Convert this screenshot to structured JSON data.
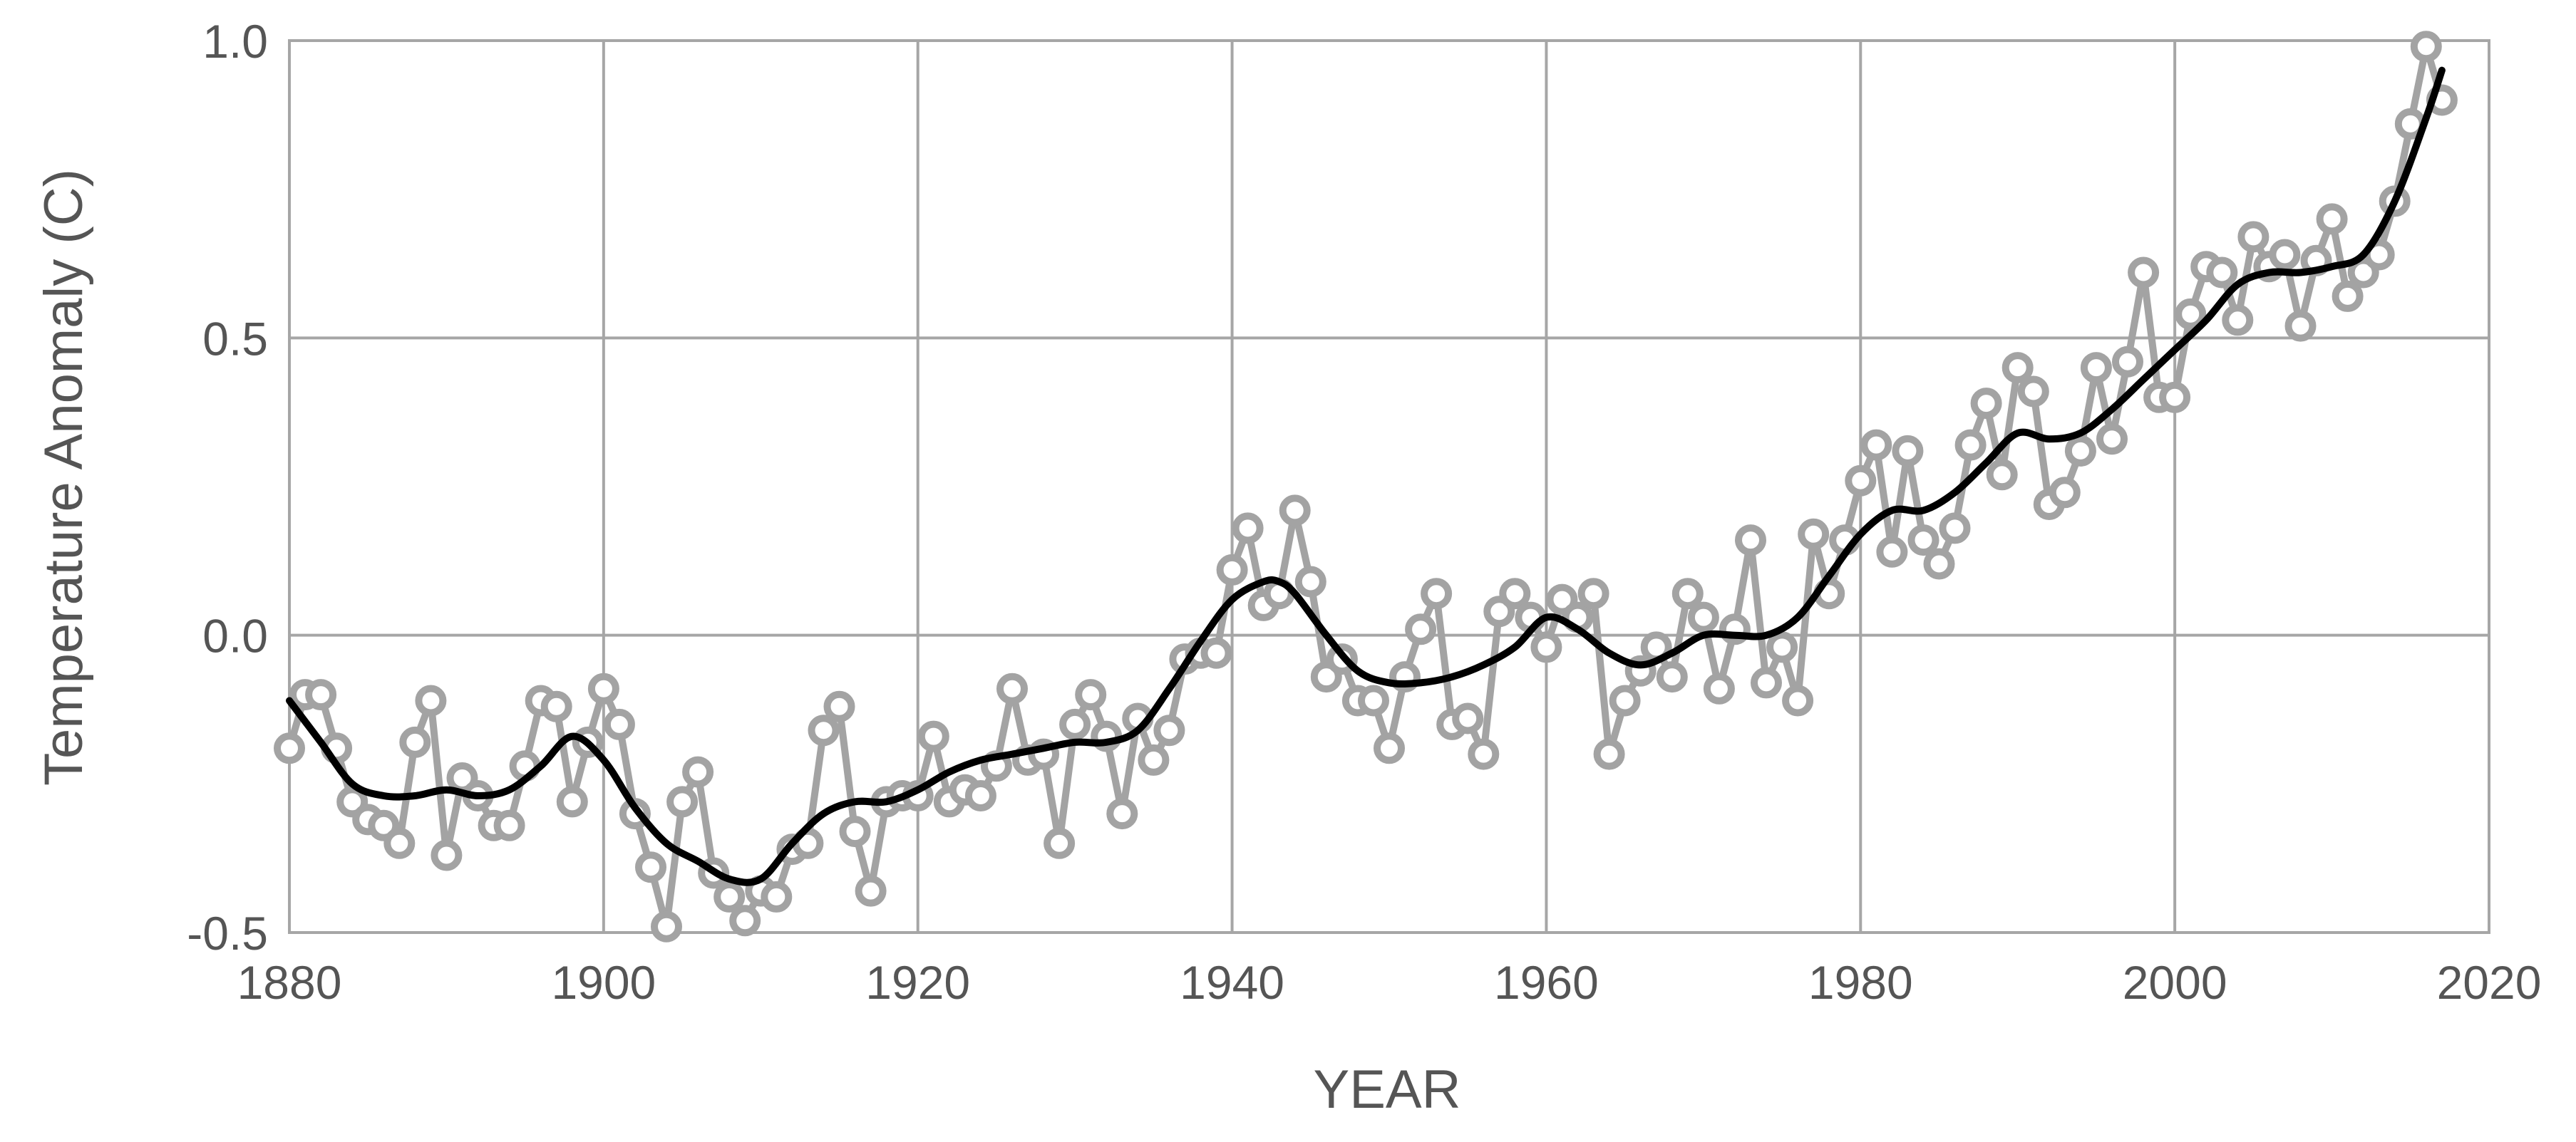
{
  "chart_data": {
    "type": "line",
    "title": "",
    "xlabel": "YEAR",
    "ylabel": "Temperature Anomaly (C)",
    "xlim": [
      1880,
      2020
    ],
    "ylim": [
      -0.5,
      1.0
    ],
    "x_ticks": [
      1880,
      1900,
      1920,
      1940,
      1960,
      1980,
      2000,
      2020
    ],
    "x_tick_labels": [
      "1880",
      "1900",
      "1920",
      "1940",
      "1960",
      "1980",
      "2000",
      "2020"
    ],
    "y_ticks": [
      -0.5,
      0.0,
      0.5,
      1.0
    ],
    "y_tick_labels": [
      "-0.5",
      "0.0",
      "0.5",
      "1.0"
    ],
    "grid": true,
    "legend": "none",
    "colors": {
      "annual": "#a3a3a3",
      "smoothed": "#000000",
      "grid": "#a6a6a6",
      "text": "#555555"
    },
    "series": [
      {
        "style": "line-with-open-circles",
        "x": [
          1880,
          1881,
          1882,
          1883,
          1884,
          1885,
          1886,
          1887,
          1888,
          1889,
          1890,
          1891,
          1892,
          1893,
          1894,
          1895,
          1896,
          1897,
          1898,
          1899,
          1900,
          1901,
          1902,
          1903,
          1904,
          1905,
          1906,
          1907,
          1908,
          1909,
          1910,
          1911,
          1912,
          1913,
          1914,
          1915,
          1916,
          1917,
          1918,
          1919,
          1920,
          1921,
          1922,
          1923,
          1924,
          1925,
          1926,
          1927,
          1928,
          1929,
          1930,
          1931,
          1932,
          1933,
          1934,
          1935,
          1936,
          1937,
          1938,
          1939,
          1940,
          1941,
          1942,
          1943,
          1944,
          1945,
          1946,
          1947,
          1948,
          1949,
          1950,
          1951,
          1952,
          1953,
          1954,
          1955,
          1956,
          1957,
          1958,
          1959,
          1960,
          1961,
          1962,
          1963,
          1964,
          1965,
          1966,
          1967,
          1968,
          1969,
          1970,
          1971,
          1972,
          1973,
          1974,
          1975,
          1976,
          1977,
          1978,
          1979,
          1980,
          1981,
          1982,
          1983,
          1984,
          1985,
          1986,
          1987,
          1988,
          1989,
          1990,
          1991,
          1992,
          1993,
          1994,
          1995,
          1996,
          1997,
          1998,
          1999,
          2000,
          2001,
          2002,
          2003,
          2004,
          2005,
          2006,
          2007,
          2008,
          2009,
          2010,
          2011,
          2012,
          2013,
          2014,
          2015,
          2016,
          2017
        ],
        "values": [
          -0.19,
          -0.1,
          -0.1,
          -0.19,
          -0.28,
          -0.31,
          -0.32,
          -0.35,
          -0.18,
          -0.11,
          -0.37,
          -0.24,
          -0.27,
          -0.32,
          -0.32,
          -0.22,
          -0.11,
          -0.12,
          -0.28,
          -0.18,
          -0.09,
          -0.15,
          -0.3,
          -0.39,
          -0.49,
          -0.28,
          -0.23,
          -0.4,
          -0.44,
          -0.48,
          -0.43,
          -0.44,
          -0.36,
          -0.35,
          -0.16,
          -0.12,
          -0.33,
          -0.43,
          -0.28,
          -0.27,
          -0.27,
          -0.17,
          -0.28,
          -0.26,
          -0.27,
          -0.22,
          -0.09,
          -0.21,
          -0.2,
          -0.35,
          -0.15,
          -0.1,
          -0.17,
          -0.3,
          -0.14,
          -0.21,
          -0.16,
          -0.04,
          -0.03,
          -0.03,
          0.11,
          0.18,
          0.05,
          0.07,
          0.21,
          0.09,
          -0.07,
          -0.04,
          -0.11,
          -0.11,
          -0.19,
          -0.07,
          0.01,
          0.07,
          -0.15,
          -0.14,
          -0.2,
          0.04,
          0.07,
          0.03,
          -0.02,
          0.06,
          0.03,
          0.07,
          -0.2,
          -0.11,
          -0.06,
          -0.02,
          -0.07,
          0.07,
          0.03,
          -0.09,
          0.01,
          0.16,
          -0.08,
          -0.02,
          -0.11,
          0.17,
          0.07,
          0.16,
          0.26,
          0.32,
          0.14,
          0.31,
          0.16,
          0.12,
          0.18,
          0.32,
          0.39,
          0.27,
          0.45,
          0.41,
          0.22,
          0.24,
          0.31,
          0.45,
          0.33,
          0.46,
          0.61,
          0.4,
          0.4,
          0.54,
          0.62,
          0.61,
          0.53,
          0.67,
          0.62,
          0.64,
          0.52,
          0.63,
          0.7,
          0.57,
          0.61,
          0.64,
          0.73,
          0.86,
          0.99,
          0.9
        ]
      },
      {
        "style": "smooth-line",
        "x": [
          1880,
          1882,
          1884,
          1886,
          1888,
          1890,
          1892,
          1894,
          1896,
          1898,
          1900,
          1902,
          1904,
          1906,
          1908,
          1910,
          1912,
          1914,
          1916,
          1918,
          1920,
          1922,
          1924,
          1926,
          1928,
          1930,
          1932,
          1934,
          1936,
          1938,
          1940,
          1942,
          1943,
          1944,
          1946,
          1948,
          1950,
          1952,
          1954,
          1956,
          1958,
          1960,
          1962,
          1964,
          1966,
          1968,
          1970,
          1972,
          1974,
          1976,
          1978,
          1980,
          1982,
          1984,
          1986,
          1988,
          1990,
          1992,
          1994,
          1996,
          1998,
          2000,
          2002,
          2004,
          2006,
          2008,
          2010,
          2012,
          2014,
          2016,
          2017
        ],
        "values": [
          -0.11,
          -0.18,
          -0.25,
          -0.27,
          -0.27,
          -0.26,
          -0.27,
          -0.26,
          -0.22,
          -0.17,
          -0.21,
          -0.29,
          -0.35,
          -0.38,
          -0.41,
          -0.41,
          -0.35,
          -0.3,
          -0.28,
          -0.28,
          -0.26,
          -0.23,
          -0.21,
          -0.2,
          -0.19,
          -0.18,
          -0.18,
          -0.16,
          -0.09,
          -0.01,
          0.06,
          0.09,
          0.09,
          0.07,
          0.0,
          -0.06,
          -0.08,
          -0.08,
          -0.07,
          -0.05,
          -0.02,
          0.03,
          0.01,
          -0.03,
          -0.05,
          -0.03,
          0.0,
          0.0,
          0.0,
          0.03,
          0.1,
          0.17,
          0.21,
          0.21,
          0.24,
          0.29,
          0.34,
          0.33,
          0.34,
          0.38,
          0.43,
          0.48,
          0.53,
          0.59,
          0.61,
          0.61,
          0.62,
          0.64,
          0.73,
          0.87,
          0.95
        ]
      }
    ]
  }
}
